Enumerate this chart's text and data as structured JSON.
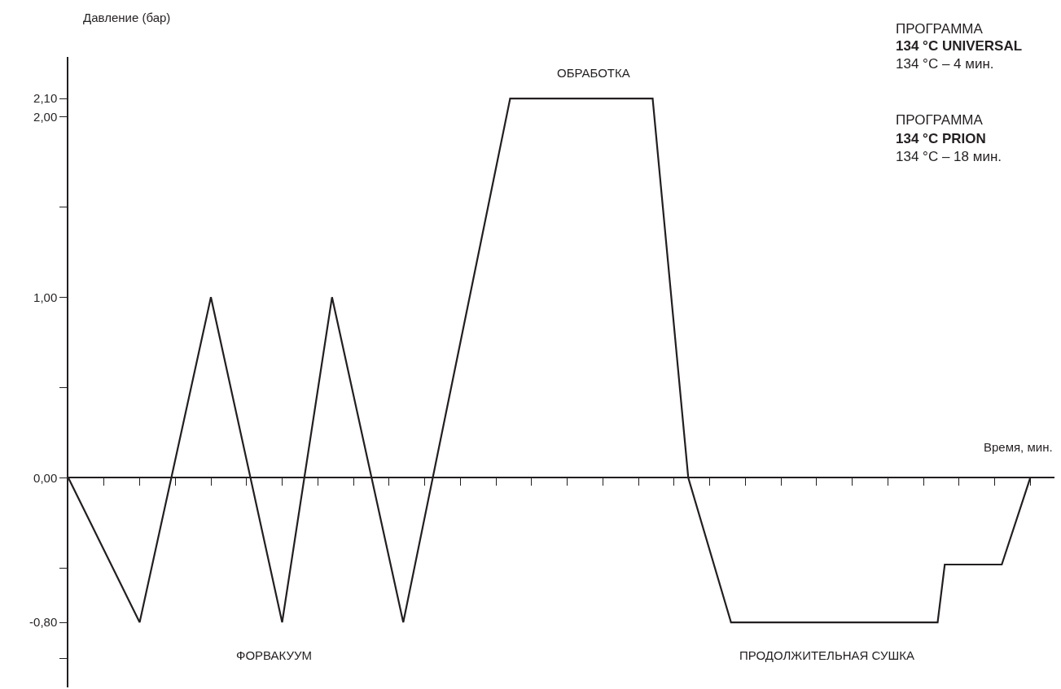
{
  "chart_data": {
    "type": "line",
    "xlabel": "Время, мин.",
    "ylabel": "Давление (бар)",
    "categories": [
      null,
      null,
      null,
      null,
      null,
      null,
      null,
      null,
      null,
      null,
      null,
      null,
      null,
      null,
      null,
      null,
      null,
      null,
      null,
      null,
      null,
      null,
      null,
      null,
      null,
      null,
      null,
      null,
      null,
      null,
      null,
      null,
      null,
      null,
      null,
      null,
      null,
      null,
      null,
      null,
      null,
      null,
      null,
      null,
      null,
      null,
      null,
      null,
      null,
      null,
      null,
      null,
      null,
      null,
      null,
      null,
      null,
      null,
      null,
      null,
      null,
      null,
      null,
      null,
      null,
      null,
      null,
      null,
      null,
      null,
      null,
      null,
      null,
      null,
      null,
      null,
      null,
      null,
      null,
      null,
      null,
      null,
      null,
      null,
      null,
      null,
      null,
      null,
      null,
      null,
      null,
      null,
      null,
      null,
      null,
      null,
      null,
      null,
      null,
      null,
      null,
      null,
      null,
      null,
      null,
      null,
      null,
      null,
      null,
      null,
      null,
      null,
      null,
      null,
      null,
      null,
      null,
      null,
      null,
      null,
      null,
      null,
      null,
      null,
      null,
      null,
      null,
      null,
      null,
      null,
      null,
      null,
      null,
      null,
      null,
      null,
      null,
      null,
      null
    ],
    "series": [
      {
        "color": "#231f20",
        "values": [
          0,
          null,
          null,
          null,
          null,
          null,
          null,
          null,
          null,
          null,
          -0.8,
          null,
          null,
          null,
          null,
          null,
          null,
          null,
          null,
          null,
          1.0,
          null,
          null,
          null,
          null,
          null,
          null,
          null,
          null,
          null,
          -0.8,
          null,
          null,
          null,
          null,
          null,
          null,
          1.0,
          null,
          null,
          null,
          null,
          null,
          null,
          null,
          null,
          null,
          -0.8,
          null,
          null,
          null,
          null,
          null,
          null,
          null,
          null,
          null,
          null,
          null,
          null,
          null,
          null,
          2.1,
          null,
          null,
          null,
          null,
          null,
          null,
          null,
          null,
          null,
          null,
          null,
          null,
          null,
          null,
          null,
          null,
          null,
          null,
          null,
          2.1,
          null,
          null,
          null,
          null,
          0,
          null,
          null,
          null,
          null,
          null,
          -0.8,
          null,
          null,
          null,
          null,
          null,
          null,
          null,
          null,
          null,
          null,
          null,
          null,
          null,
          null,
          null,
          null,
          null,
          null,
          null,
          null,
          null,
          null,
          null,
          null,
          null,
          null,
          null,
          null,
          -0.8,
          -0.48,
          null,
          null,
          null,
          null,
          null,
          null,
          null,
          -0.48,
          null,
          null,
          null,
          0,
          null,
          null,
          null
        ]
      }
    ],
    "ylim": [
      -1.16,
      2.33
    ],
    "yticks": [
      {
        "value": -1.0,
        "label": null
      },
      {
        "value": -0.8,
        "label": "-0,80"
      },
      {
        "value": -0.5,
        "label": null
      },
      {
        "value": 0,
        "label": "0,00"
      },
      {
        "value": 0.5,
        "label": null
      },
      {
        "value": 1.0,
        "label": "1,00"
      },
      {
        "value": 1.5,
        "label": null
      },
      {
        "value": 2.0,
        "label": "2,00"
      },
      {
        "value": 2.1,
        "label": "2,10"
      }
    ],
    "annotations": [
      "ОБРАБОТКА",
      "ФОРВАКУУМ",
      "ПРОДОЛЖИТЕЛЬНАЯ СУШКА",
      "ПРОГРАММА",
      "134 °C UNIVERSAL",
      "134 °C – 4 мин.",
      "ПРОГРАММА",
      "134 °C PRION",
      "134 °C – 18 мин."
    ],
    "marker": "none",
    "line_style": "solid"
  }
}
